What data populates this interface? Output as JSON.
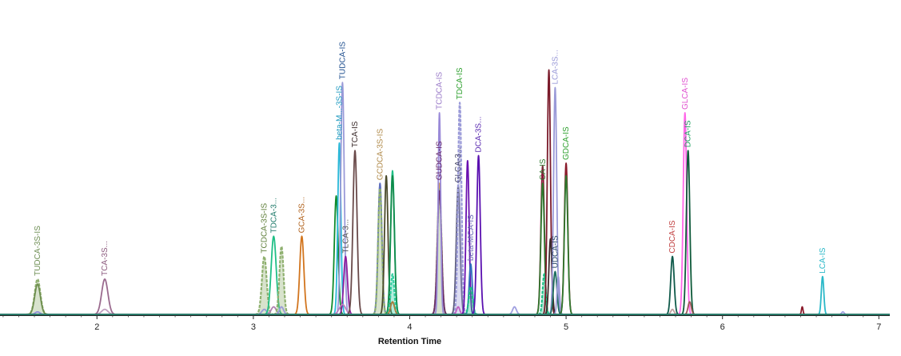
{
  "chart_data": {
    "type": "line",
    "title": "",
    "xlabel": "Retention Time",
    "ylabel": "",
    "xlim": [
      1.38,
      7.07
    ],
    "ylim": [
      0,
      1.0
    ],
    "x_ticks": [
      2,
      3,
      4,
      5,
      6,
      7
    ],
    "grid": false,
    "legend": "none",
    "peaks": [
      {
        "x": 1.62,
        "h": 0.14,
        "w": 0.018,
        "color": "#8fb06f",
        "fill": true,
        "label": "TUDCA-3S-IS",
        "label_color": "#6f8f55"
      },
      {
        "x": 1.62,
        "h": 0.12,
        "w": 0.018,
        "color": "#6e8e4f",
        "fill": false,
        "label": "",
        "label_color": ""
      },
      {
        "x": 1.62,
        "h": 0.01,
        "w": 0.015,
        "color": "#8f8fd8",
        "fill": false,
        "label": "",
        "label_color": ""
      },
      {
        "x": 2.05,
        "h": 0.14,
        "w": 0.02,
        "color": "#9a6a8e",
        "fill": false,
        "label": "TCA-3S...",
        "label_color": "#8b5a7e"
      },
      {
        "x": 2.05,
        "h": 0.02,
        "w": 0.02,
        "color": "#c0a0c0",
        "fill": false,
        "label": "",
        "label_color": ""
      },
      {
        "x": 3.07,
        "h": 0.23,
        "w": 0.015,
        "color": "#8fb06f",
        "fill": true,
        "label": "TCDCA-3S-IS",
        "label_color": "#5f7f3a"
      },
      {
        "x": 3.07,
        "h": 0.02,
        "w": 0.015,
        "color": "#9a9ad8",
        "fill": false,
        "label": "",
        "label_color": ""
      },
      {
        "x": 3.13,
        "h": 0.31,
        "w": 0.016,
        "color": "#1fbf86",
        "fill": false,
        "label": "TDCA-3...",
        "label_color": "#1e7a6a"
      },
      {
        "x": 3.13,
        "h": 0.03,
        "w": 0.016,
        "color": "#b080b0",
        "fill": false,
        "label": "",
        "label_color": ""
      },
      {
        "x": 3.18,
        "h": 0.27,
        "w": 0.013,
        "color": "#8fb06f",
        "fill": true,
        "label": "",
        "label_color": ""
      },
      {
        "x": 3.18,
        "h": 0.03,
        "w": 0.013,
        "color": "#9a9ad8",
        "fill": false,
        "label": "",
        "label_color": ""
      },
      {
        "x": 3.31,
        "h": 0.31,
        "w": 0.013,
        "color": "#d2751e",
        "fill": false,
        "label": "GCA-3S...",
        "label_color": "#b0601a"
      },
      {
        "x": 3.53,
        "h": 0.47,
        "w": 0.012,
        "color": "#0f8a2a",
        "fill": false,
        "label": "",
        "label_color": ""
      },
      {
        "x": 3.55,
        "h": 0.68,
        "w": 0.01,
        "color": "#2ab8d8",
        "fill": false,
        "label": "beta-M...-3S-IS",
        "label_color": "#1f9ac0"
      },
      {
        "x": 3.57,
        "h": 0.92,
        "w": 0.011,
        "color": "#9a9ad8",
        "fill": false,
        "label": "TUDCA-IS",
        "label_color": "#1f4f8f"
      },
      {
        "x": 3.59,
        "h": 0.23,
        "w": 0.012,
        "color": "#8f1f9f",
        "fill": false,
        "label": "TLCA-3...",
        "label_color": "#4f4f4f"
      },
      {
        "x": 3.57,
        "h": 0.04,
        "w": 0.02,
        "color": "#c080c0",
        "fill": false,
        "label": "",
        "label_color": ""
      },
      {
        "x": 3.65,
        "h": 0.65,
        "w": 0.013,
        "color": "#6a4a4a",
        "fill": false,
        "label": "TCA-IS",
        "label_color": "#3a2a2a"
      },
      {
        "x": 3.81,
        "h": 0.52,
        "w": 0.012,
        "color": "#8fa8d8",
        "fill": false,
        "label": "GCDCA-3S-IS",
        "label_color": "#b08a4a"
      },
      {
        "x": 3.81,
        "h": 0.52,
        "w": 0.012,
        "color": "#5f6fbf",
        "fill": false,
        "label": "",
        "label_color": ""
      },
      {
        "x": 3.81,
        "h": 0.5,
        "w": 0.012,
        "color": "#8fb06f",
        "fill": true,
        "label": "",
        "label_color": ""
      },
      {
        "x": 3.85,
        "h": 0.55,
        "w": 0.011,
        "color": "#4a4a2a",
        "fill": false,
        "label": "",
        "label_color": ""
      },
      {
        "x": 3.89,
        "h": 0.57,
        "w": 0.012,
        "color": "#1fbf86",
        "fill": false,
        "label": "",
        "label_color": ""
      },
      {
        "x": 3.89,
        "h": 0.55,
        "w": 0.012,
        "color": "#0f8a4a",
        "fill": false,
        "label": "",
        "label_color": ""
      },
      {
        "x": 3.89,
        "h": 0.16,
        "w": 0.011,
        "color": "#2fcfa0",
        "fill": true,
        "label": "",
        "label_color": ""
      },
      {
        "x": 3.89,
        "h": 0.05,
        "w": 0.012,
        "color": "#a87a3a",
        "fill": false,
        "label": "",
        "label_color": ""
      },
      {
        "x": 4.19,
        "h": 0.52,
        "w": 0.013,
        "color": "#d4a050",
        "fill": false,
        "label": "GUDCA-IS",
        "label_color": "#6a2a6a"
      },
      {
        "x": 4.19,
        "h": 0.5,
        "w": 0.013,
        "color": "#8fb06f",
        "fill": true,
        "label": "",
        "label_color": ""
      },
      {
        "x": 4.19,
        "h": 0.49,
        "w": 0.013,
        "color": "#6a2a6a",
        "fill": false,
        "label": "",
        "label_color": ""
      },
      {
        "x": 4.19,
        "h": 0.8,
        "w": 0.008,
        "color": "#9a8ad8",
        "fill": false,
        "label": "TCDCA-IS",
        "label_color": "#9a7ac8"
      },
      {
        "x": 4.31,
        "h": 0.51,
        "w": 0.012,
        "color": "#5a5a7a",
        "fill": false,
        "label": "GLCA-3...",
        "label_color": "#4a4a6a"
      },
      {
        "x": 4.32,
        "h": 0.84,
        "w": 0.011,
        "color": "#9a9ad8",
        "fill": true,
        "label": "TDCA-IS",
        "label_color": "#2fa02f"
      },
      {
        "x": 4.31,
        "h": 0.03,
        "w": 0.01,
        "color": "#c060c0",
        "fill": false,
        "label": "",
        "label_color": ""
      },
      {
        "x": 4.37,
        "h": 0.61,
        "w": 0.01,
        "color": "#6a10b0",
        "fill": false,
        "label": "",
        "label_color": ""
      },
      {
        "x": 4.39,
        "h": 0.2,
        "w": 0.01,
        "color": "#2f6fbf",
        "fill": false,
        "label": "beta-MCA-IS",
        "label_color": "#6a6ab8"
      },
      {
        "x": 4.39,
        "h": 0.11,
        "w": 0.012,
        "color": "#1fbf86",
        "fill": true,
        "label": "",
        "label_color": ""
      },
      {
        "x": 4.44,
        "h": 0.63,
        "w": 0.011,
        "color": "#5a10b0",
        "fill": false,
        "label": "DCA-3S...",
        "label_color": "#5a2ab0"
      },
      {
        "x": 4.67,
        "h": 0.03,
        "w": 0.012,
        "color": "#a0a0e0",
        "fill": false,
        "label": "",
        "label_color": ""
      },
      {
        "x": 4.85,
        "h": 0.59,
        "w": 0.011,
        "color": "#8a1a3a",
        "fill": false,
        "label": "",
        "label_color": ""
      },
      {
        "x": 4.85,
        "h": 0.52,
        "w": 0.011,
        "color": "#2f7a2f",
        "fill": false,
        "label": "CA-IS",
        "label_color": "#2f7a2f"
      },
      {
        "x": 4.86,
        "h": 0.16,
        "w": 0.01,
        "color": "#1fbf86",
        "fill": true,
        "label": "",
        "label_color": ""
      },
      {
        "x": 4.89,
        "h": 0.97,
        "w": 0.01,
        "color": "#7a1a2a",
        "fill": false,
        "label": "",
        "label_color": ""
      },
      {
        "x": 4.9,
        "h": 0.3,
        "w": 0.01,
        "color": "#3a2a2a",
        "fill": false,
        "label": "",
        "label_color": ""
      },
      {
        "x": 4.93,
        "h": 0.9,
        "w": 0.01,
        "color": "#9a9ad8",
        "fill": false,
        "label": "LCA-3S...",
        "label_color": "#9a9ad8"
      },
      {
        "x": 4.93,
        "h": 0.17,
        "w": 0.011,
        "color": "#1f6f5f",
        "fill": false,
        "label": "UDCA-IS",
        "label_color": "#2a4a6a"
      },
      {
        "x": 4.95,
        "h": 0.15,
        "w": 0.008,
        "color": "#9a9ad8",
        "fill": false,
        "label": "",
        "label_color": ""
      },
      {
        "x": 5.0,
        "h": 0.6,
        "w": 0.011,
        "color": "#8a1a2a",
        "fill": false,
        "label": "GDCA-IS",
        "label_color": "#2fa02f"
      },
      {
        "x": 5.0,
        "h": 0.55,
        "w": 0.011,
        "color": "#2f7a2f",
        "fill": false,
        "label": "",
        "label_color": ""
      },
      {
        "x": 5.68,
        "h": 0.23,
        "w": 0.011,
        "color": "#0f5a4a",
        "fill": false,
        "label": "CDCA-IS",
        "label_color": "#c04040"
      },
      {
        "x": 5.68,
        "h": 0.02,
        "w": 0.01,
        "color": "#c0a0a0",
        "fill": false,
        "label": "",
        "label_color": ""
      },
      {
        "x": 5.76,
        "h": 0.8,
        "w": 0.011,
        "color": "#ff66e8",
        "fill": false,
        "label": "GLCA-IS",
        "label_color": "#e050d0"
      },
      {
        "x": 5.78,
        "h": 0.65,
        "w": 0.011,
        "color": "#0f5a3a",
        "fill": false,
        "label": "DCA-IS",
        "label_color": "#1fa060"
      },
      {
        "x": 5.79,
        "h": 0.05,
        "w": 0.01,
        "color": "#a05a5a",
        "fill": false,
        "label": "",
        "label_color": ""
      },
      {
        "x": 6.51,
        "h": 0.03,
        "w": 0.005,
        "color": "#8a1a2a",
        "fill": false,
        "label": "",
        "label_color": ""
      },
      {
        "x": 6.64,
        "h": 0.15,
        "w": 0.008,
        "color": "#2ab8c8",
        "fill": false,
        "label": "LCA-IS",
        "label_color": "#2ab8c8"
      },
      {
        "x": 6.77,
        "h": 0.01,
        "w": 0.008,
        "color": "#a0a0e0",
        "fill": false,
        "label": "",
        "label_color": ""
      }
    ]
  }
}
